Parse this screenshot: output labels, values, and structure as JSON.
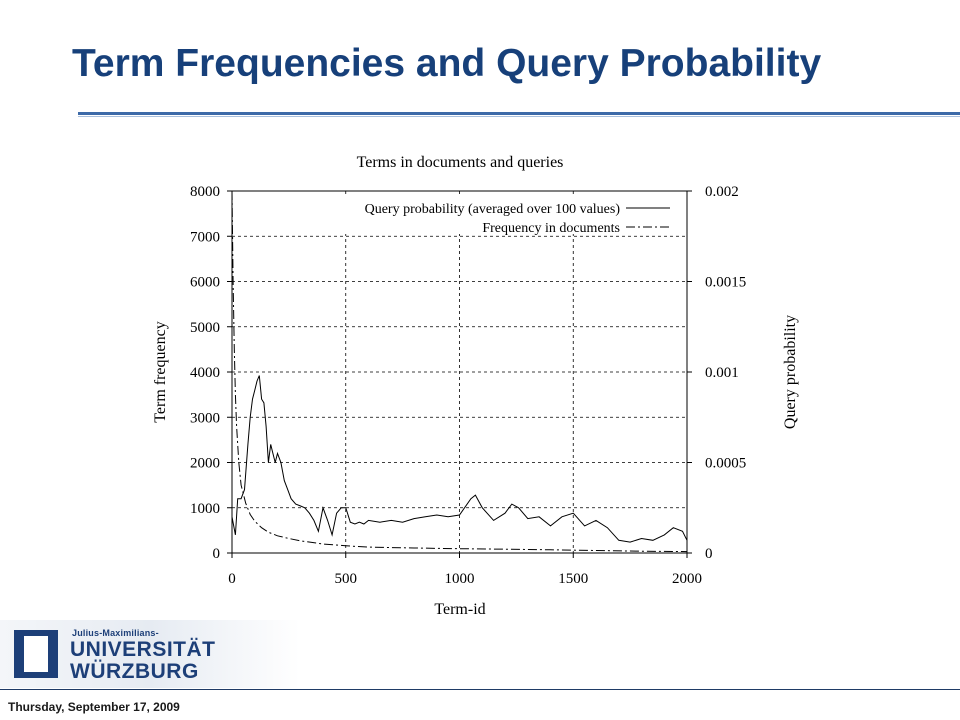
{
  "slide": {
    "title": "Term Frequencies and Query Probability",
    "footer_date": "Thursday, September 17, 2009"
  },
  "logo": {
    "small": "Julius-Maximilians-",
    "line1": "UNIVERSITÄT",
    "line2": "WÜRZBURG"
  },
  "colors": {
    "title": "#17407a",
    "rule": "#3d6aa8",
    "logo": "#1d3f78"
  },
  "chart_data": {
    "type": "line",
    "title": "Terms in documents and queries",
    "xlabel": "Term-id",
    "ylabel_left": "Term frequency",
    "ylabel_right": "Query probability",
    "xlim": [
      0,
      2000
    ],
    "ylim_left": [
      0,
      8000
    ],
    "ylim_right": [
      0,
      0.002
    ],
    "x_ticks": [
      "0",
      "500",
      "1000",
      "1500",
      "2000"
    ],
    "y_ticks_left": [
      "0",
      "1000",
      "2000",
      "3000",
      "4000",
      "5000",
      "6000",
      "7000",
      "8000"
    ],
    "y_ticks_right": [
      "0",
      "0.0005",
      "0.001",
      "0.0015",
      "0.002"
    ],
    "grid": true,
    "legend_position": "top-right",
    "series": [
      {
        "name": "Query probability (averaged over 100 values)",
        "axis": "right",
        "style": "solid",
        "x": [
          0,
          15,
          25,
          40,
          55,
          70,
          80,
          90,
          100,
          110,
          120,
          130,
          140,
          150,
          160,
          170,
          180,
          190,
          200,
          215,
          230,
          245,
          260,
          280,
          300,
          320,
          340,
          360,
          380,
          400,
          420,
          440,
          460,
          480,
          500,
          520,
          540,
          560,
          580,
          600,
          650,
          700,
          750,
          800,
          850,
          900,
          950,
          1000,
          1050,
          1070,
          1100,
          1150,
          1200,
          1230,
          1260,
          1300,
          1350,
          1400,
          1450,
          1500,
          1550,
          1600,
          1650,
          1700,
          1750,
          1800,
          1850,
          1900,
          1940,
          1980,
          2000
        ],
        "y": [
          0.0002,
          0.0001,
          0.0003,
          0.0003,
          0.00035,
          0.0006,
          0.00075,
          0.00085,
          0.0009,
          0.00095,
          0.00098,
          0.00085,
          0.00083,
          0.0007,
          0.0005,
          0.0006,
          0.00055,
          0.0005,
          0.00055,
          0.0005,
          0.0004,
          0.00035,
          0.0003,
          0.00027,
          0.00026,
          0.00025,
          0.00022,
          0.00018,
          0.00012,
          0.00025,
          0.00018,
          0.0001,
          0.00022,
          0.00025,
          0.00025,
          0.00017,
          0.00016,
          0.00017,
          0.00016,
          0.00018,
          0.00017,
          0.00018,
          0.00017,
          0.00019,
          0.0002,
          0.00021,
          0.0002,
          0.00021,
          0.0003,
          0.00032,
          0.00025,
          0.00018,
          0.00022,
          0.00027,
          0.00025,
          0.00019,
          0.0002,
          0.00015,
          0.0002,
          0.00022,
          0.00015,
          0.00018,
          0.00014,
          7e-05,
          6e-05,
          8e-05,
          7e-05,
          0.0001,
          0.00014,
          0.00012,
          7e-05
        ]
      },
      {
        "name": "Frequency in documents",
        "axis": "left",
        "style": "dash-dot",
        "x": [
          0,
          5,
          10,
          15,
          20,
          30,
          40,
          60,
          80,
          100,
          130,
          160,
          200,
          250,
          300,
          400,
          500,
          600,
          800,
          1000,
          1200,
          1400,
          1600,
          1800,
          2000
        ],
        "y": [
          8000,
          6000,
          4500,
          3500,
          2800,
          2000,
          1500,
          1100,
          850,
          700,
          560,
          460,
          380,
          320,
          270,
          200,
          160,
          130,
          110,
          95,
          85,
          70,
          55,
          40,
          30
        ]
      }
    ]
  }
}
